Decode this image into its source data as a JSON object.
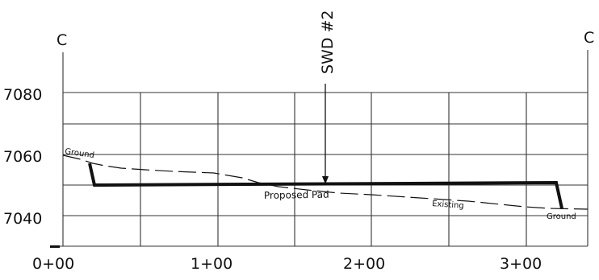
{
  "section": {
    "left_marker": "C",
    "right_marker": "C",
    "well_label": "SWD #2"
  },
  "elevation_labels": [
    "7080",
    "7060",
    "7040"
  ],
  "station_labels": [
    "0+00",
    "1+00",
    "2+00",
    "3+00"
  ],
  "annotations": {
    "ground_left": "Ground",
    "proposed_pad": "Proposed Pad",
    "existing": "Existing",
    "ground_right": "Ground"
  },
  "colors": {
    "ink": "#111111",
    "grid": "#333333"
  }
}
